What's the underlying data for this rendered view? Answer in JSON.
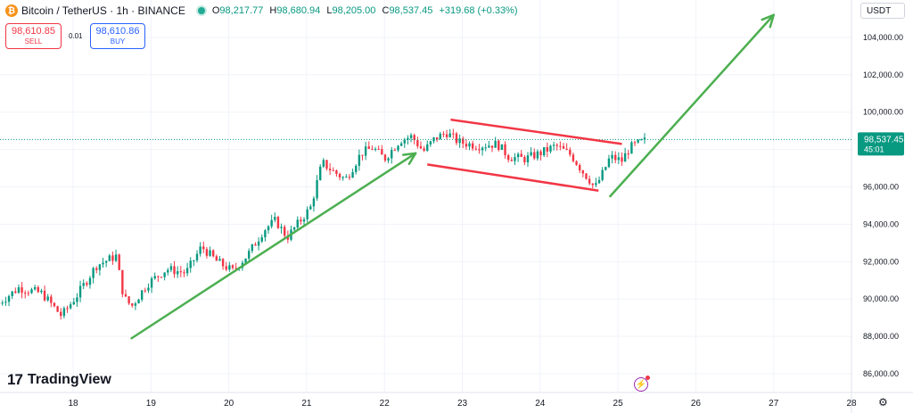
{
  "header": {
    "symbol": "Bitcoin / TetherUS · 1h · BINANCE",
    "open_label": "O",
    "open": "98,217.77",
    "high_label": "H",
    "high": "98,680.94",
    "low_label": "L",
    "low": "98,205.00",
    "close_label": "C",
    "close": "98,537.45",
    "change": "+319.68 (+0.33%)"
  },
  "trade": {
    "sell_price": "98,610.85",
    "sell_label": "SELL",
    "spread": "0.01",
    "buy_price": "98,610.86",
    "buy_label": "BUY"
  },
  "currency": "USDT",
  "branding": {
    "logo_mark": "17",
    "logo_text": "TradingView"
  },
  "icons": {
    "bolt": "lightning-icon",
    "settings": "gear-icon"
  },
  "colors": {
    "up": "#089981",
    "down": "#f23645",
    "arrow": "#4caf50",
    "channel": "#f23645",
    "price_label": "#089981"
  },
  "chart_data": {
    "type": "candlestick",
    "x_ticks": [
      {
        "label": "18",
        "x": 18.0
      },
      {
        "label": "19",
        "x": 19.0
      },
      {
        "label": "20",
        "x": 20.0
      },
      {
        "label": "21",
        "x": 21.0
      },
      {
        "label": "22",
        "x": 22.0
      },
      {
        "label": "23",
        "x": 23.0
      },
      {
        "label": "24",
        "x": 24.0
      },
      {
        "label": "25",
        "x": 25.0
      },
      {
        "label": "26",
        "x": 26.0
      },
      {
        "label": "27",
        "x": 27.0
      },
      {
        "label": "28",
        "x": 28.0
      }
    ],
    "y_ticks": [
      86000,
      88000,
      90000,
      92000,
      94000,
      96000,
      98000,
      100000,
      102000,
      104000
    ],
    "y_tick_labels": [
      "86,000.00",
      "88,000.00",
      "90,000.00",
      "92,000.00",
      "94,000.00",
      "96,000.00",
      "98,000.00",
      "100,000.00",
      "102,000.00",
      "104,000.00"
    ],
    "ylim": [
      85000,
      106000
    ],
    "xlim": [
      17.06,
      28.0
    ],
    "last_price": 98537.45,
    "last_price_label": "98,537.45",
    "countdown": "45:01",
    "close_path": [
      [
        17.05,
        89800
      ],
      [
        17.3,
        90600
      ],
      [
        17.6,
        90300
      ],
      [
        17.85,
        89100
      ],
      [
        18.05,
        90200
      ],
      [
        18.3,
        91800
      ],
      [
        18.55,
        92300
      ],
      [
        18.65,
        90100
      ],
      [
        18.75,
        89600
      ],
      [
        18.95,
        90800
      ],
      [
        19.2,
        91600
      ],
      [
        19.45,
        91400
      ],
      [
        19.65,
        92800
      ],
      [
        19.85,
        92000
      ],
      [
        20.05,
        91500
      ],
      [
        20.25,
        92400
      ],
      [
        20.45,
        93700
      ],
      [
        20.6,
        94200
      ],
      [
        20.75,
        93300
      ],
      [
        20.9,
        94100
      ],
      [
        21.05,
        94900
      ],
      [
        21.2,
        97300
      ],
      [
        21.35,
        96800
      ],
      [
        21.5,
        96400
      ],
      [
        21.7,
        97800
      ],
      [
        21.85,
        98100
      ],
      [
        22.0,
        97500
      ],
      [
        22.2,
        98500
      ],
      [
        22.35,
        98700
      ],
      [
        22.5,
        97900
      ],
      [
        22.65,
        98600
      ],
      [
        22.8,
        98900
      ],
      [
        22.95,
        98400
      ],
      [
        23.2,
        98200
      ],
      [
        23.45,
        98300
      ],
      [
        23.6,
        97600
      ],
      [
        23.8,
        97500
      ],
      [
        24.0,
        97800
      ],
      [
        24.2,
        98200
      ],
      [
        24.4,
        97700
      ],
      [
        24.55,
        96800
      ],
      [
        24.65,
        96300
      ],
      [
        24.7,
        95900
      ],
      [
        24.8,
        96700
      ],
      [
        24.9,
        97600
      ],
      [
        25.05,
        97400
      ],
      [
        25.15,
        98100
      ],
      [
        25.25,
        98300
      ],
      [
        25.38,
        98537
      ]
    ],
    "annotations": {
      "arrow1": {
        "from": [
          18.75,
          87900
        ],
        "to": [
          22.4,
          97800
        ]
      },
      "arrow2": {
        "from": [
          24.9,
          95500
        ],
        "to": [
          27.0,
          105200
        ]
      },
      "channel_top": {
        "from": [
          22.85,
          99600
        ],
        "to": [
          25.05,
          98300
        ]
      },
      "channel_bottom": {
        "from": [
          22.55,
          97200
        ],
        "to": [
          24.75,
          95800
        ]
      }
    }
  }
}
